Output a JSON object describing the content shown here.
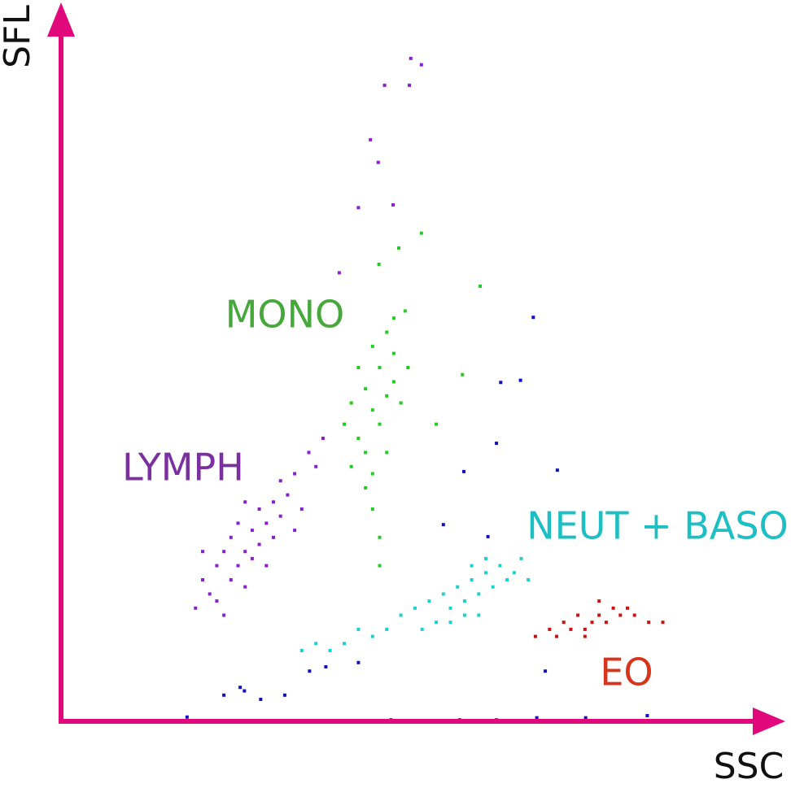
{
  "chart_data": {
    "type": "scatter",
    "x_label": "SSC",
    "y_label": "SFL",
    "xlim": [
      0,
      100
    ],
    "ylim": [
      0,
      100
    ],
    "axis_color": "#e0087a",
    "series": [
      {
        "name": "LYMPH",
        "color": "#8a1fd0",
        "x": [
          19,
          20,
          21,
          22,
          22,
          23,
          24,
          24,
          25,
          25,
          26,
          26,
          27,
          27,
          28,
          28,
          29,
          29,
          30,
          30,
          31,
          31,
          32,
          33,
          34,
          35,
          36,
          37,
          20,
          26,
          23,
          33,
          49.4,
          50.9,
          49.2,
          45.7,
          43.7,
          44.8,
          42,
          46.9,
          39.3
        ],
        "values": [
          16,
          20,
          18,
          22,
          17,
          24,
          20,
          26,
          22,
          28,
          24,
          19,
          27,
          23,
          30,
          25,
          28,
          22,
          31,
          26,
          29,
          34,
          32,
          35,
          30,
          38,
          36,
          40,
          24,
          31,
          15,
          27,
          93.7,
          92.8,
          89.9,
          89.9,
          82.2,
          79,
          72.6,
          73,
          63.4
        ]
      },
      {
        "name": "MONO",
        "color": "#22cc22",
        "x": [
          41,
          42,
          43,
          44,
          45,
          46,
          47,
          43,
          44,
          45,
          46,
          47,
          42,
          48,
          44,
          45,
          43,
          46,
          41,
          47,
          44,
          40,
          49,
          45,
          44.9,
          47.7,
          50.9,
          59.2,
          56.7,
          53,
          48.6
        ],
        "values": [
          45,
          40,
          47,
          44,
          50,
          46,
          52,
          38,
          35,
          42,
          55,
          48,
          50,
          45,
          30,
          26,
          33,
          38,
          36,
          57,
          53,
          42,
          50,
          22,
          64.6,
          66.9,
          69,
          61.5,
          49,
          42,
          58
        ]
      },
      {
        "name": "NEUT + BASO",
        "color": "#1ad0d0",
        "x": [
          50,
          52,
          54,
          55,
          56,
          57,
          58,
          59,
          60,
          61,
          62,
          63,
          64,
          65,
          53,
          55,
          57,
          59,
          51,
          48,
          46,
          44,
          42,
          40,
          38,
          36,
          34,
          60,
          58,
          66
        ],
        "values": [
          16,
          17,
          18,
          16,
          19,
          17,
          20,
          18,
          21,
          19,
          22,
          20,
          21,
          23,
          14,
          14,
          15,
          15,
          13,
          15,
          13,
          12,
          13,
          11,
          10,
          11,
          10,
          23,
          22,
          20
        ]
      },
      {
        "name": "EO",
        "color": "#d01010",
        "x": [
          67,
          69,
          70,
          71,
          72,
          73,
          74,
          75,
          76,
          77,
          78,
          79,
          80,
          81,
          83,
          85,
          76,
          74
        ],
        "values": [
          12,
          13,
          12,
          14,
          13,
          15,
          13,
          14,
          15,
          14,
          16,
          15,
          16,
          15,
          14,
          14,
          17,
          12
        ]
      },
      {
        "color": "#1010c0",
        "x": [
          23,
          25.9,
          28.2,
          25.3,
          31.6,
          35.1,
          37.4,
          42,
          54,
          60.3,
          56.9,
          61.5,
          62.1,
          64.9,
          66.7,
          70.1,
          68.4,
          56.3,
          61.5,
          67.2,
          74.1,
          82.8,
          46.6,
          17.8
        ],
        "values": [
          3.7,
          4.3,
          3.1,
          4.8,
          3.7,
          7.1,
          7.7,
          8.3,
          27.8,
          26.1,
          35.3,
          39.3,
          47.9,
          48.2,
          57.1,
          35.5,
          7.1,
          0.2,
          0.2,
          0.5,
          0.5,
          0.8,
          0.2,
          0.6
        ]
      }
    ]
  }
}
